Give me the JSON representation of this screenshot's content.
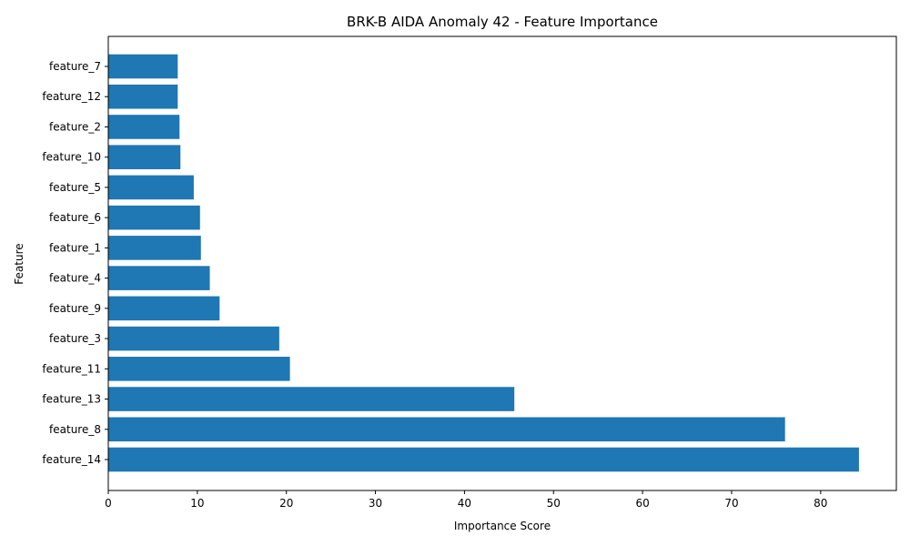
{
  "chart_data": {
    "type": "bar",
    "orientation": "horizontal",
    "title": "BRK-B AIDA Anomaly 42 - Feature Importance",
    "xlabel": "Importance Score",
    "ylabel": "Feature",
    "categories": [
      "feature_14",
      "feature_8",
      "feature_13",
      "feature_11",
      "feature_3",
      "feature_9",
      "feature_4",
      "feature_1",
      "feature_6",
      "feature_5",
      "feature_10",
      "feature_2",
      "feature_12",
      "feature_7"
    ],
    "values": [
      84.3,
      76.0,
      45.6,
      20.4,
      19.2,
      12.5,
      11.4,
      10.4,
      10.3,
      9.6,
      8.1,
      8.0,
      7.8,
      7.8
    ],
    "xlim": [
      0,
      88.5
    ],
    "xticks": [
      0,
      10,
      20,
      30,
      40,
      50,
      60,
      70,
      80
    ],
    "bar_color": "#1f77b4",
    "grid": false
  }
}
